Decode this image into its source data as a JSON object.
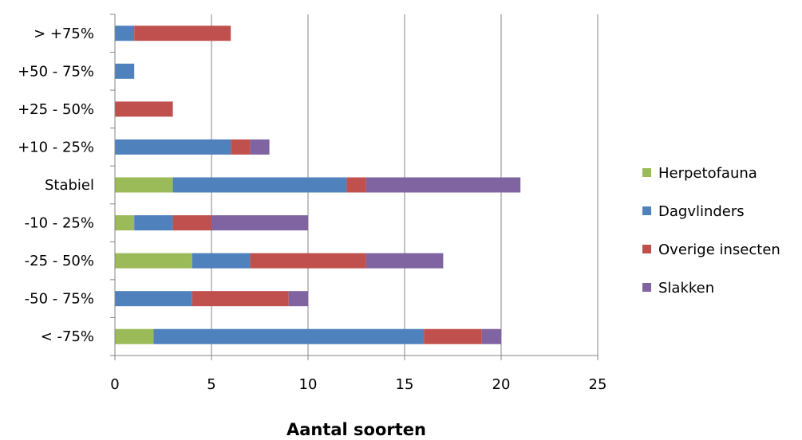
{
  "chart_data": {
    "type": "bar",
    "orientation": "horizontal",
    "stacked": true,
    "categories": [
      "> +75%",
      "+50 - 75%",
      "+25 - 50%",
      "+10 - 25%",
      "Stabiel",
      "-10 - 25%",
      "-25 - 50%",
      "-50 - 75%",
      "< -75%"
    ],
    "series": [
      {
        "name": "Herpetofauna",
        "color": "#9bbb59",
        "values": [
          0,
          0,
          0,
          0,
          3,
          1,
          4,
          0,
          2
        ]
      },
      {
        "name": "Dagvlinders",
        "color": "#4f81bd",
        "values": [
          1,
          1,
          0,
          6,
          9,
          2,
          3,
          4,
          14
        ]
      },
      {
        "name": "Overige insecten",
        "color": "#c0504d",
        "values": [
          5,
          0,
          3,
          1,
          1,
          2,
          6,
          5,
          3
        ]
      },
      {
        "name": "Slakken",
        "color": "#8064a2",
        "values": [
          0,
          0,
          0,
          1,
          8,
          5,
          4,
          1,
          1
        ]
      }
    ],
    "xlabel": "Aantal soorten",
    "ylabel": "",
    "xlim": [
      0,
      25
    ],
    "xticks": [
      "0",
      "5",
      "10",
      "15",
      "20",
      "25"
    ],
    "grid": "vertical",
    "legend": "right"
  }
}
